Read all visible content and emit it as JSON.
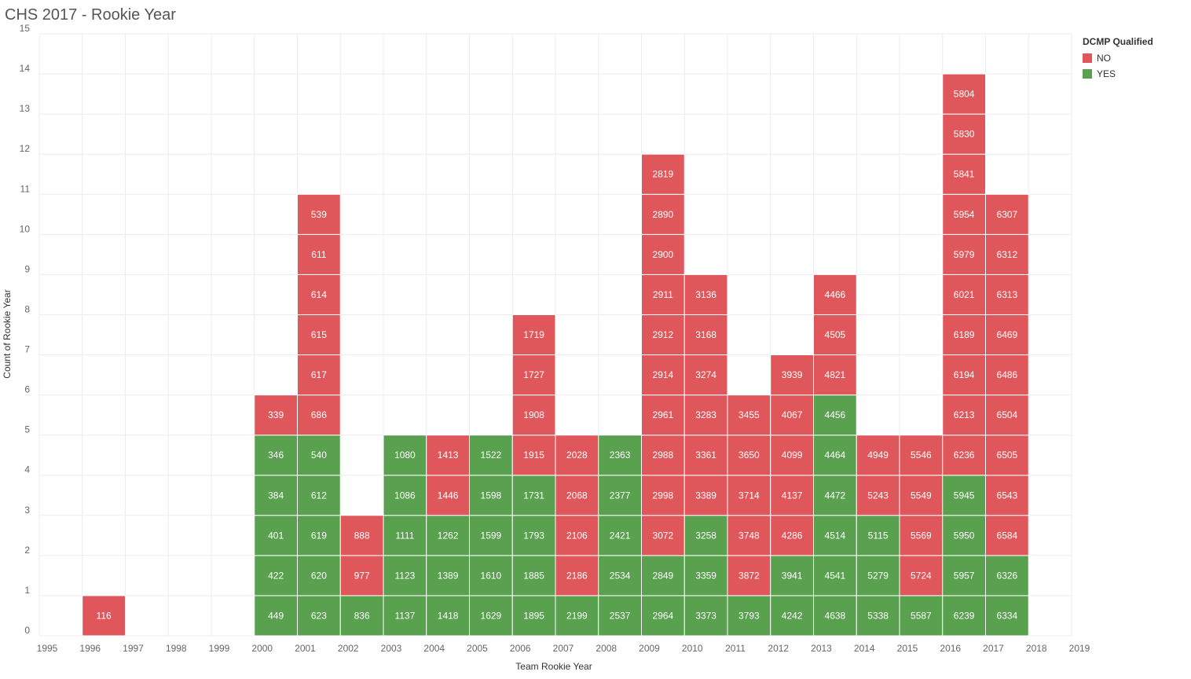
{
  "title": "CHS 2017 - Rookie Year",
  "legend": {
    "title": "DCMP Qualified",
    "items": [
      {
        "label": "NO",
        "color": "#e0575b"
      },
      {
        "label": "YES",
        "color": "#59a14f"
      }
    ]
  },
  "chart_data": {
    "type": "bar",
    "stacked": true,
    "xlabel": "Team Rookie Year",
    "ylabel": "Count of Rookie Year",
    "xlim": [
      1995,
      2019
    ],
    "ylim": [
      0,
      15
    ],
    "x_ticks": [
      "1995",
      "1996",
      "1997",
      "1998",
      "1999",
      "2000",
      "2001",
      "2002",
      "2003",
      "2004",
      "2005",
      "2006",
      "2007",
      "2008",
      "2009",
      "2010",
      "2011",
      "2012",
      "2013",
      "2014",
      "2015",
      "2016",
      "2017",
      "2018",
      "2019"
    ],
    "y_ticks": [
      "0",
      "1",
      "2",
      "3",
      "4",
      "5",
      "6",
      "7",
      "8",
      "9",
      "10",
      "11",
      "12",
      "13",
      "14",
      "15"
    ],
    "grid": true,
    "legend_position": "top-right",
    "colors": {
      "NO": "#e0575b",
      "YES": "#59a14f"
    },
    "columns": [
      {
        "year": 1996,
        "cells": [
          {
            "team": "116",
            "q": "NO"
          }
        ]
      },
      {
        "year": 2000,
        "cells": [
          {
            "team": "449",
            "q": "YES"
          },
          {
            "team": "422",
            "q": "YES"
          },
          {
            "team": "401",
            "q": "YES"
          },
          {
            "team": "384",
            "q": "YES"
          },
          {
            "team": "346",
            "q": "YES"
          },
          {
            "team": "339",
            "q": "NO"
          }
        ]
      },
      {
        "year": 2001,
        "cells": [
          {
            "team": "623",
            "q": "YES"
          },
          {
            "team": "620",
            "q": "YES"
          },
          {
            "team": "619",
            "q": "YES"
          },
          {
            "team": "612",
            "q": "YES"
          },
          {
            "team": "540",
            "q": "YES"
          },
          {
            "team": "686",
            "q": "NO"
          },
          {
            "team": "617",
            "q": "NO"
          },
          {
            "team": "615",
            "q": "NO"
          },
          {
            "team": "614",
            "q": "NO"
          },
          {
            "team": "611",
            "q": "NO"
          },
          {
            "team": "539",
            "q": "NO"
          }
        ]
      },
      {
        "year": 2002,
        "cells": [
          {
            "team": "836",
            "q": "YES"
          },
          {
            "team": "977",
            "q": "NO"
          },
          {
            "team": "888",
            "q": "NO"
          }
        ]
      },
      {
        "year": 2003,
        "cells": [
          {
            "team": "1137",
            "q": "YES"
          },
          {
            "team": "1123",
            "q": "YES"
          },
          {
            "team": "1111",
            "q": "YES"
          },
          {
            "team": "1086",
            "q": "YES"
          },
          {
            "team": "1080",
            "q": "YES"
          }
        ]
      },
      {
        "year": 2004,
        "cells": [
          {
            "team": "1418",
            "q": "YES"
          },
          {
            "team": "1389",
            "q": "YES"
          },
          {
            "team": "1262",
            "q": "YES"
          },
          {
            "team": "1446",
            "q": "NO"
          },
          {
            "team": "1413",
            "q": "NO"
          }
        ]
      },
      {
        "year": 2005,
        "cells": [
          {
            "team": "1629",
            "q": "YES"
          },
          {
            "team": "1610",
            "q": "YES"
          },
          {
            "team": "1599",
            "q": "YES"
          },
          {
            "team": "1598",
            "q": "YES"
          },
          {
            "team": "1522",
            "q": "YES"
          }
        ]
      },
      {
        "year": 2006,
        "cells": [
          {
            "team": "1895",
            "q": "YES"
          },
          {
            "team": "1885",
            "q": "YES"
          },
          {
            "team": "1793",
            "q": "YES"
          },
          {
            "team": "1731",
            "q": "YES"
          },
          {
            "team": "1915",
            "q": "NO"
          },
          {
            "team": "1908",
            "q": "NO"
          },
          {
            "team": "1727",
            "q": "NO"
          },
          {
            "team": "1719",
            "q": "NO"
          }
        ]
      },
      {
        "year": 2007,
        "cells": [
          {
            "team": "2199",
            "q": "YES"
          },
          {
            "team": "2186",
            "q": "NO"
          },
          {
            "team": "2106",
            "q": "NO"
          },
          {
            "team": "2068",
            "q": "NO"
          },
          {
            "team": "2028",
            "q": "NO"
          }
        ]
      },
      {
        "year": 2008,
        "cells": [
          {
            "team": "2537",
            "q": "YES"
          },
          {
            "team": "2534",
            "q": "YES"
          },
          {
            "team": "2421",
            "q": "YES"
          },
          {
            "team": "2377",
            "q": "YES"
          },
          {
            "team": "2363",
            "q": "YES"
          }
        ]
      },
      {
        "year": 2009,
        "cells": [
          {
            "team": "2964",
            "q": "YES"
          },
          {
            "team": "2849",
            "q": "YES"
          },
          {
            "team": "3072",
            "q": "NO"
          },
          {
            "team": "2998",
            "q": "NO"
          },
          {
            "team": "2988",
            "q": "NO"
          },
          {
            "team": "2961",
            "q": "NO"
          },
          {
            "team": "2914",
            "q": "NO"
          },
          {
            "team": "2912",
            "q": "NO"
          },
          {
            "team": "2911",
            "q": "NO"
          },
          {
            "team": "2900",
            "q": "NO"
          },
          {
            "team": "2890",
            "q": "NO"
          },
          {
            "team": "2819",
            "q": "NO"
          }
        ]
      },
      {
        "year": 2010,
        "cells": [
          {
            "team": "3373",
            "q": "YES"
          },
          {
            "team": "3359",
            "q": "YES"
          },
          {
            "team": "3258",
            "q": "YES"
          },
          {
            "team": "3389",
            "q": "NO"
          },
          {
            "team": "3361",
            "q": "NO"
          },
          {
            "team": "3283",
            "q": "NO"
          },
          {
            "team": "3274",
            "q": "NO"
          },
          {
            "team": "3168",
            "q": "NO"
          },
          {
            "team": "3136",
            "q": "NO"
          }
        ]
      },
      {
        "year": 2011,
        "cells": [
          {
            "team": "3793",
            "q": "YES"
          },
          {
            "team": "3872",
            "q": "NO"
          },
          {
            "team": "3748",
            "q": "NO"
          },
          {
            "team": "3714",
            "q": "NO"
          },
          {
            "team": "3650",
            "q": "NO"
          },
          {
            "team": "3455",
            "q": "NO"
          }
        ]
      },
      {
        "year": 2012,
        "cells": [
          {
            "team": "4242",
            "q": "YES"
          },
          {
            "team": "3941",
            "q": "YES"
          },
          {
            "team": "4286",
            "q": "NO"
          },
          {
            "team": "4137",
            "q": "NO"
          },
          {
            "team": "4099",
            "q": "NO"
          },
          {
            "team": "4067",
            "q": "NO"
          },
          {
            "team": "3939",
            "q": "NO"
          }
        ]
      },
      {
        "year": 2013,
        "cells": [
          {
            "team": "4638",
            "q": "YES"
          },
          {
            "team": "4541",
            "q": "YES"
          },
          {
            "team": "4514",
            "q": "YES"
          },
          {
            "team": "4472",
            "q": "YES"
          },
          {
            "team": "4464",
            "q": "YES"
          },
          {
            "team": "4456",
            "q": "YES"
          },
          {
            "team": "4821",
            "q": "NO"
          },
          {
            "team": "4505",
            "q": "NO"
          },
          {
            "team": "4466",
            "q": "NO"
          }
        ]
      },
      {
        "year": 2014,
        "cells": [
          {
            "team": "5338",
            "q": "YES"
          },
          {
            "team": "5279",
            "q": "YES"
          },
          {
            "team": "5115",
            "q": "YES"
          },
          {
            "team": "5243",
            "q": "NO"
          },
          {
            "team": "4949",
            "q": "NO"
          }
        ]
      },
      {
        "year": 2015,
        "cells": [
          {
            "team": "5587",
            "q": "YES"
          },
          {
            "team": "5724",
            "q": "NO"
          },
          {
            "team": "5569",
            "q": "NO"
          },
          {
            "team": "5549",
            "q": "NO"
          },
          {
            "team": "5546",
            "q": "NO"
          }
        ]
      },
      {
        "year": 2016,
        "cells": [
          {
            "team": "6239",
            "q": "YES"
          },
          {
            "team": "5957",
            "q": "YES"
          },
          {
            "team": "5950",
            "q": "YES"
          },
          {
            "team": "5945",
            "q": "YES"
          },
          {
            "team": "6236",
            "q": "NO"
          },
          {
            "team": "6213",
            "q": "NO"
          },
          {
            "team": "6194",
            "q": "NO"
          },
          {
            "team": "6189",
            "q": "NO"
          },
          {
            "team": "6021",
            "q": "NO"
          },
          {
            "team": "5979",
            "q": "NO"
          },
          {
            "team": "5954",
            "q": "NO"
          },
          {
            "team": "5841",
            "q": "NO"
          },
          {
            "team": "5830",
            "q": "NO"
          },
          {
            "team": "5804",
            "q": "NO"
          }
        ]
      },
      {
        "year": 2017,
        "cells": [
          {
            "team": "6334",
            "q": "YES"
          },
          {
            "team": "6326",
            "q": "YES"
          },
          {
            "team": "6584",
            "q": "NO"
          },
          {
            "team": "6543",
            "q": "NO"
          },
          {
            "team": "6505",
            "q": "NO"
          },
          {
            "team": "6504",
            "q": "NO"
          },
          {
            "team": "6486",
            "q": "NO"
          },
          {
            "team": "6469",
            "q": "NO"
          },
          {
            "team": "6313",
            "q": "NO"
          },
          {
            "team": "6312",
            "q": "NO"
          },
          {
            "team": "6307",
            "q": "NO"
          }
        ]
      }
    ]
  }
}
